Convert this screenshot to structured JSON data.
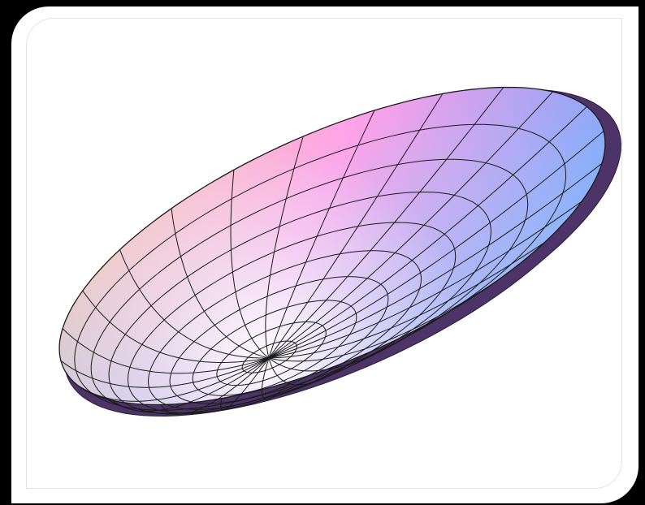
{
  "figure": {
    "kind": "parametric-surface",
    "shape": "paraboloid-bowl",
    "mesh": {
      "radial_lines": 24,
      "rings": 10,
      "line_color": "#1a1a1a"
    },
    "colors": {
      "background": "#000000",
      "frame": "#ffffff",
      "underside": "#4d3468",
      "gradient_top_left": "#ffcc99",
      "gradient_top_center": "#ff99e6",
      "gradient_right": "#8a8cf0",
      "gradient_bottom_right": "#4da6ff",
      "gradient_center": "#ffffff"
    }
  }
}
